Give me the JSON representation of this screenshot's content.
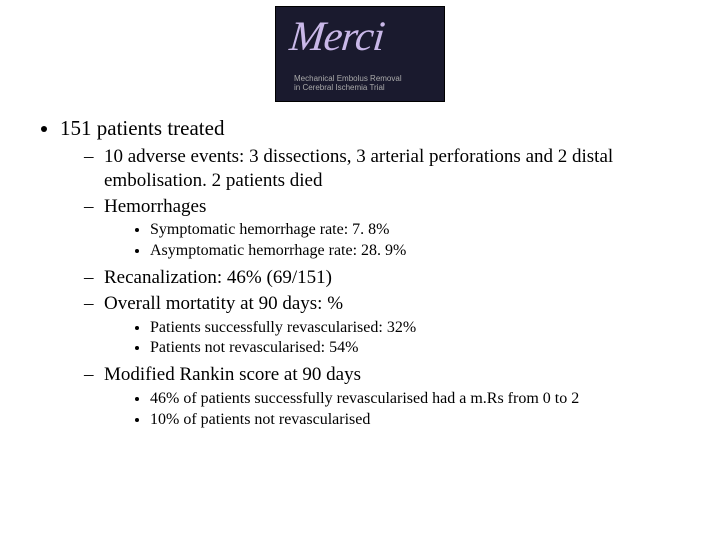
{
  "logo": {
    "script": "Merci",
    "sub1": "Mechanical Embolus Removal",
    "sub2": "in Cerebral Ischemia Trial"
  },
  "bullets": {
    "l1_0": "151 patients treated",
    "l2_0": "10 adverse events: 3 dissections, 3 arterial perforations and 2 distal embolisation. 2 patients died",
    "l2_1": "Hemorrhages",
    "l3_0": "Symptomatic hemorrhage rate: 7. 8%",
    "l3_1": "Asymptomatic hemorrhage rate: 28. 9%",
    "l2_2": "Recanalization: 46% (69/151)",
    "l2_3": "Overall mortatity at 90 days: %",
    "l3_2": "Patients successfully revascularised: 32%",
    "l3_3": "Patients not revascularised: 54%",
    "l2_4": "Modified Rankin score at 90 days",
    "l3_4": "46% of patients successfully revascularised had a m.Rs from 0 to 2",
    "l3_5": "10% of patients not revascularised"
  }
}
